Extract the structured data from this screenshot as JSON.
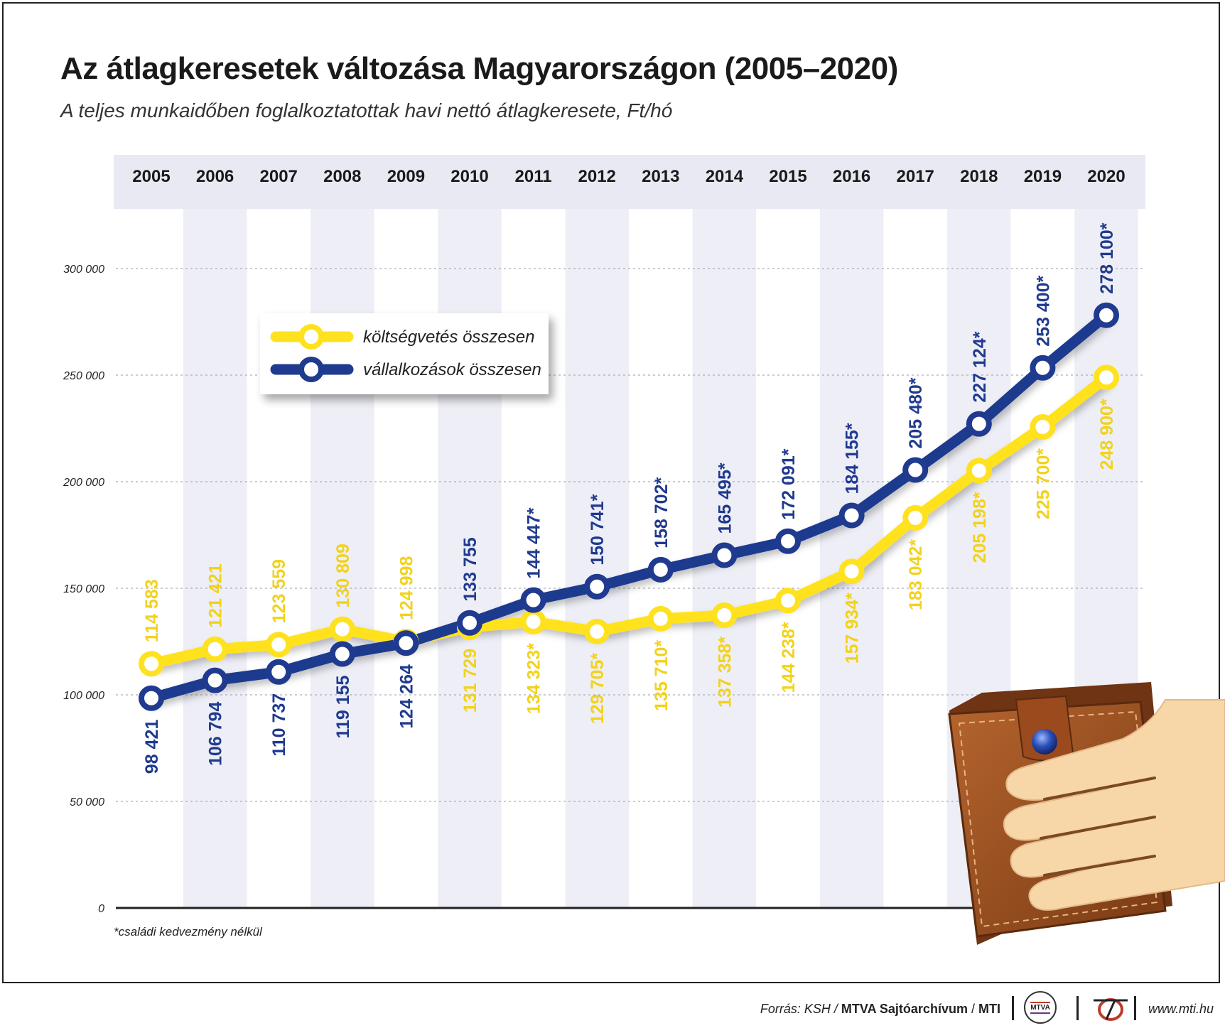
{
  "title": "Az átlagkeresetek változása Magyarországon (2005–2020)",
  "subtitle": "A teljes munkaidőben foglalkoztatottak havi nettó átlagkeresete, Ft/hó",
  "footnote": "*családi kedvezmény nélkül",
  "footer": {
    "source_prefix": "Forrás: KSH /",
    "source_bold": "MTVA Sajtóarchívum",
    "source_sep": "/",
    "source_mti": "MTI",
    "mtva_logo_text": "MTVA",
    "website": "www.mti.hu"
  },
  "colors": {
    "yellow": "#FFE21F",
    "yellow_label": "#F2D21B",
    "blue": "#1F3A8F",
    "band": "#EEEEF6",
    "header_band": "#E9E9F3"
  },
  "chart_data": {
    "type": "line",
    "categories": [
      "2005",
      "2006",
      "2007",
      "2008",
      "2009",
      "2010",
      "2011",
      "2012",
      "2013",
      "2014",
      "2015",
      "2016",
      "2017",
      "2018",
      "2019",
      "2020"
    ],
    "ylim": [
      0,
      300000
    ],
    "yticks": [
      0,
      50000,
      100000,
      150000,
      200000,
      250000,
      300000
    ],
    "ytick_labels": [
      "0",
      "50 000",
      "100 000",
      "150 000",
      "200 000",
      "250 000",
      "300 000"
    ],
    "grid": true,
    "legend_position": "upper-left",
    "series": [
      {
        "name": "költségvetés összesen",
        "color": "#FFE21F",
        "values": [
          114583,
          121421,
          123559,
          130809,
          124998,
          131729,
          134323,
          129705,
          135710,
          137358,
          144238,
          157934,
          183042,
          205198,
          225700,
          248900
        ],
        "labels": [
          "114 583",
          "121 421",
          "123 559",
          "130 809",
          "124 998",
          "131 729",
          "134 323*",
          "129 705*",
          "135 710*",
          "137 358*",
          "144 238*",
          "157 934*",
          "183 042*",
          "205 198*",
          "225 700*",
          "248 900*"
        ],
        "label_side": [
          "above",
          "above",
          "above",
          "above",
          "above",
          "below",
          "below",
          "below",
          "below",
          "below",
          "below",
          "below",
          "below",
          "below",
          "below",
          "below"
        ]
      },
      {
        "name": "vállalkozások összesen",
        "color": "#1F3A8F",
        "values": [
          98421,
          106794,
          110737,
          119155,
          124264,
          133755,
          144447,
          150741,
          158702,
          165495,
          172091,
          184155,
          205480,
          227124,
          253400,
          278100
        ],
        "labels": [
          "98 421",
          "106 794",
          "110 737",
          "119 155",
          "124 264",
          "133 755",
          "144 447*",
          "150 741*",
          "158 702*",
          "165 495*",
          "172 091*",
          "184 155*",
          "205 480*",
          "227 124*",
          "253 400*",
          "278 100*"
        ],
        "label_side": [
          "below",
          "below",
          "below",
          "below",
          "below",
          "above",
          "above",
          "above",
          "above",
          "above",
          "above",
          "above",
          "above",
          "above",
          "above",
          "above"
        ]
      }
    ]
  }
}
